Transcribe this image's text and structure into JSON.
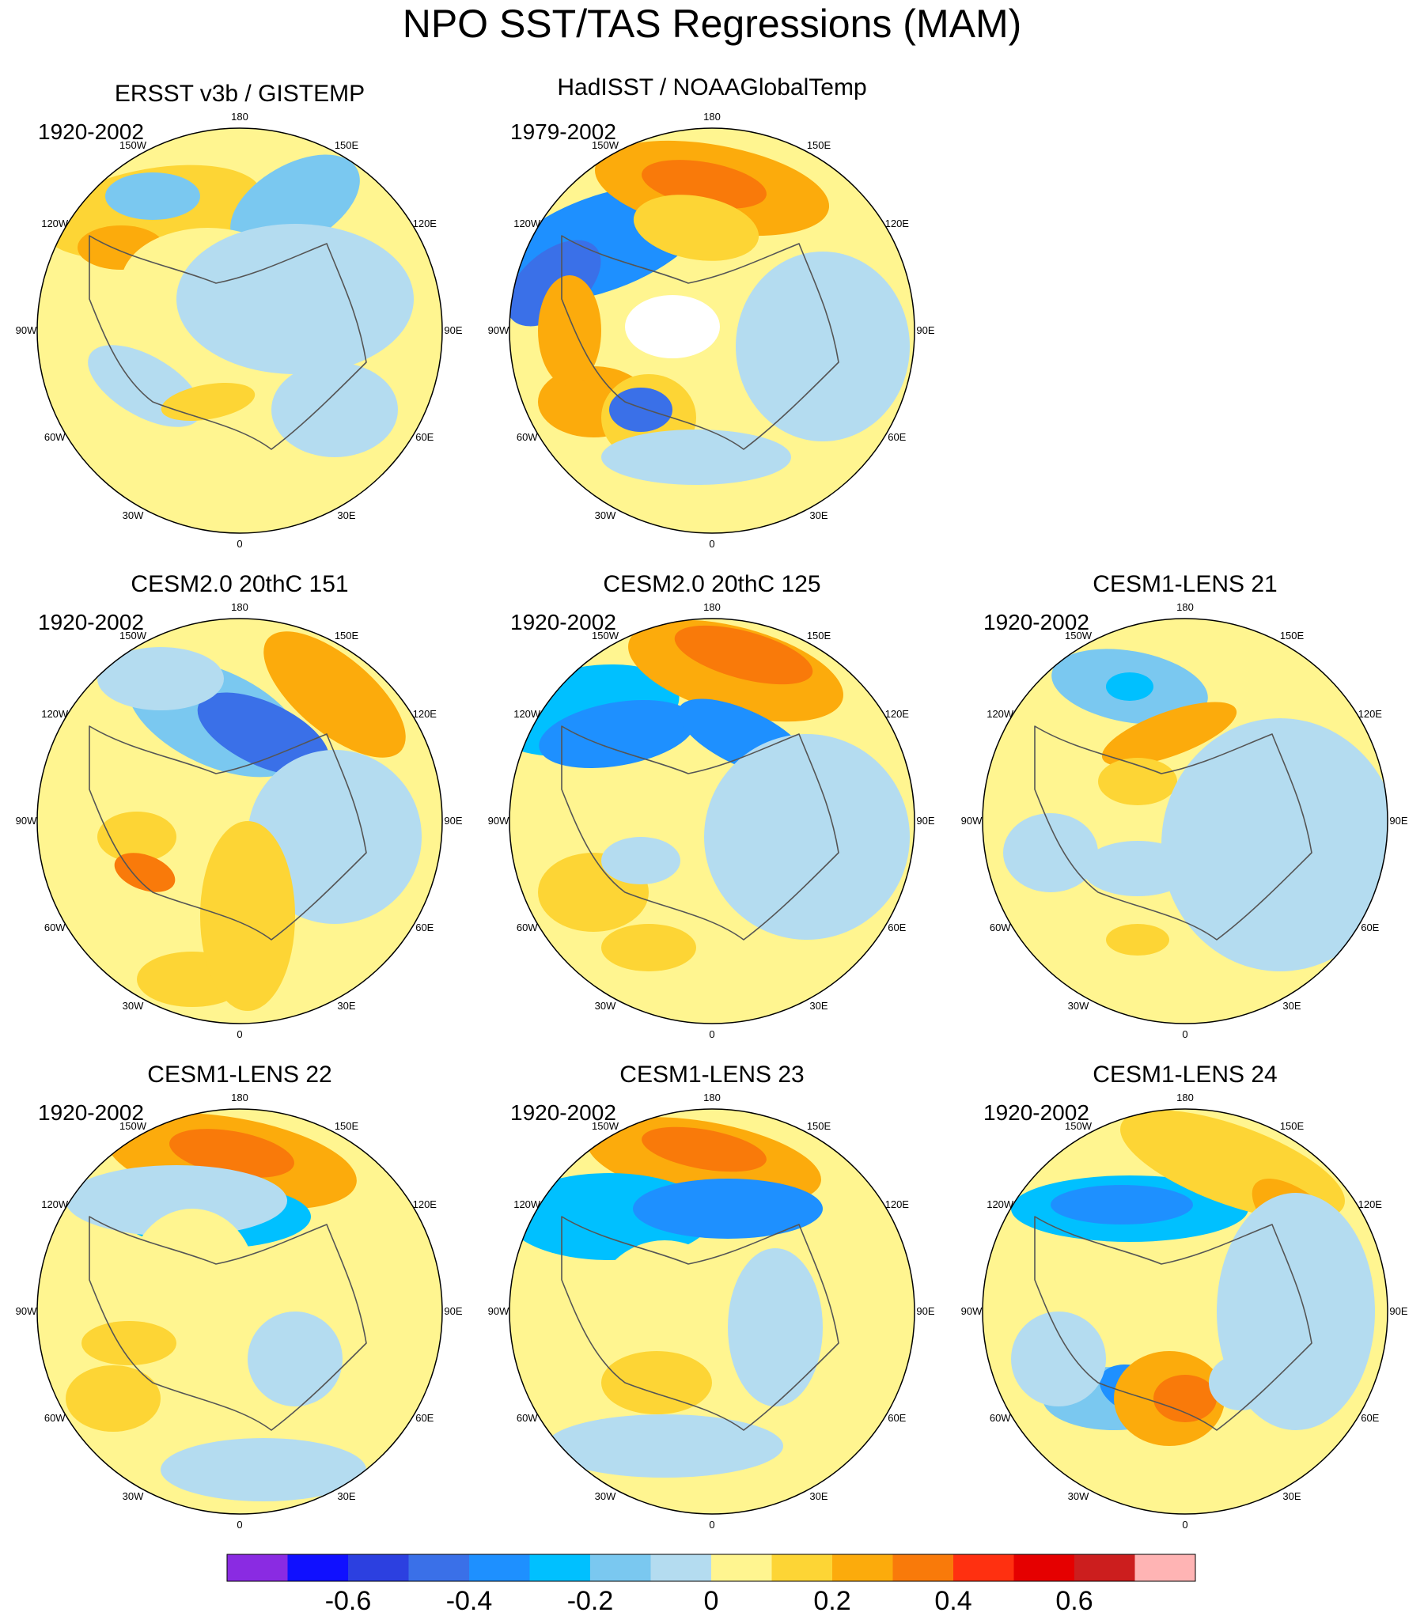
{
  "title": "NPO SST/TAS Regressions (MAM)",
  "panels": [
    {
      "id": "p1",
      "title": "ERSST v3b / GISTEMP",
      "years": "1920-2002",
      "pattern": "obs1"
    },
    {
      "id": "p2",
      "title": "HadISST / NOAAGlobalTemp",
      "years": "1979-2002",
      "pattern": "obs2"
    },
    {
      "id": "p3",
      "title": "CESM2.0 20thC 151",
      "years": "1920-2002",
      "pattern": "m151"
    },
    {
      "id": "p4",
      "title": "CESM2.0 20thC 125",
      "years": "1920-2002",
      "pattern": "m125"
    },
    {
      "id": "p5",
      "title": "CESM1-LENS 21",
      "years": "1920-2002",
      "pattern": "l21"
    },
    {
      "id": "p6",
      "title": "CESM1-LENS 22",
      "years": "1920-2002",
      "pattern": "l22"
    },
    {
      "id": "p7",
      "title": "CESM1-LENS 23",
      "years": "1920-2002",
      "pattern": "l23"
    },
    {
      "id": "p8",
      "title": "CESM1-LENS 24",
      "years": "1920-2002",
      "pattern": "l24"
    }
  ],
  "longitude_labels": [
    "180",
    "150E",
    "120E",
    "90E",
    "60E",
    "30E",
    "0",
    "30W",
    "60W",
    "90W",
    "120W",
    "150W"
  ],
  "colorbar": {
    "colors": [
      "#8a2be2",
      "#1010ff",
      "#2c40e0",
      "#3a70e8",
      "#1e90ff",
      "#00c0ff",
      "#7ac8f0",
      "#b4dcf0",
      "#fff590",
      "#fdd535",
      "#fcab0c",
      "#f97a0a",
      "#ff3010",
      "#e50000",
      "#cc1e1e",
      "#ffb4b4"
    ],
    "ticks": [
      "-0.6",
      "-0.4",
      "-0.2",
      "0",
      "0.2",
      "0.4",
      "0.6"
    ]
  }
}
